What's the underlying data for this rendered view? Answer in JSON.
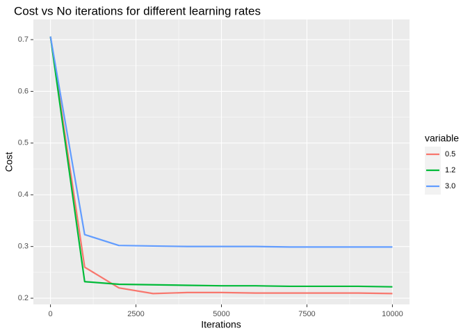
{
  "chart_data": {
    "type": "line",
    "title": "Cost vs No iterations for  different learning rates",
    "x_label": "Iterations",
    "y_label": "Cost",
    "legend_title": "variable",
    "x": [
      0,
      1000,
      2000,
      3000,
      4000,
      5000,
      6000,
      7000,
      8000,
      9000,
      10000
    ],
    "series": [
      {
        "name": "0.5",
        "color": "#F8766D",
        "values": [
          0.706,
          0.26,
          0.22,
          0.209,
          0.211,
          0.211,
          0.21,
          0.21,
          0.21,
          0.21,
          0.209
        ]
      },
      {
        "name": "1.2",
        "color": "#00BA38",
        "values": [
          0.706,
          0.232,
          0.227,
          0.226,
          0.225,
          0.224,
          0.224,
          0.223,
          0.223,
          0.223,
          0.222
        ]
      },
      {
        "name": "3.0",
        "color": "#619CFF",
        "values": [
          0.706,
          0.323,
          0.302,
          0.301,
          0.3,
          0.3,
          0.3,
          0.299,
          0.299,
          0.299,
          0.299
        ]
      }
    ],
    "xlim": [
      -500,
      10500
    ],
    "ylim": [
      0.188,
      0.739
    ],
    "xticks": [
      0,
      2500,
      5000,
      7500,
      10000
    ],
    "yticks": [
      0.2,
      0.3,
      0.4,
      0.5,
      0.6,
      0.7
    ],
    "grid": true,
    "legend_position": "right"
  }
}
